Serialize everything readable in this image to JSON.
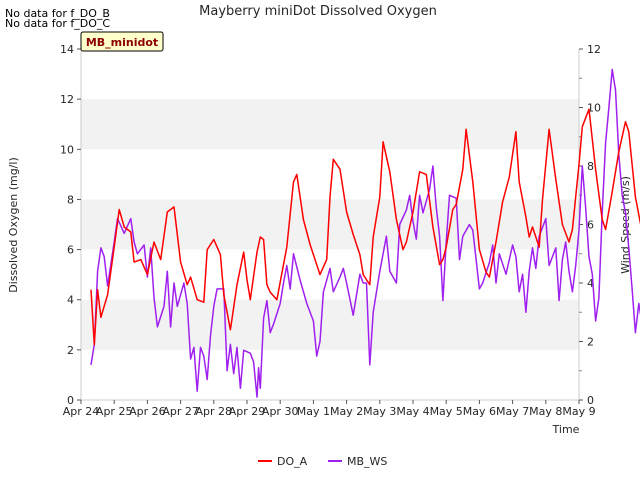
{
  "notes": [
    "No data for f_DO_B",
    "No data for f_DO_C"
  ],
  "badge": "MB_minidot",
  "colors": {
    "do_a": "#ff0000",
    "mb_ws": "#a020f0",
    "band": "#f2f2f2",
    "badge_bg": "#ffffcc",
    "badge_text": "#8b0000"
  },
  "chart_data": {
    "type": "line",
    "title": "Mayberry miniDot Dissolved Oxygen",
    "xlabel": "Time",
    "ylabel": "Dissolved Oxygen (mg/l)",
    "y2label": "Wind Speed (m/s)",
    "ylim": [
      0,
      14
    ],
    "y2lim": [
      0,
      12
    ],
    "yticks": [
      "0",
      "2",
      "4",
      "6",
      "8",
      "10",
      "12",
      "14"
    ],
    "y2ticks": [
      "0",
      "2",
      "4",
      "6",
      "8",
      "10",
      "12"
    ],
    "xticks": [
      "Apr 24",
      "Apr 25",
      "Apr 26",
      "Apr 27",
      "Apr 28",
      "Apr 29",
      "Apr 30",
      "May 1",
      "May 2",
      "May 3",
      "May 4",
      "May 5",
      "May 6",
      "May 7",
      "May 8",
      "May 9"
    ],
    "grid": "horizontal bands",
    "legend_position": "bottom-center",
    "series": [
      {
        "name": "DO_A",
        "axis": "left",
        "points": [
          [
            0.3,
            4.4
          ],
          [
            0.4,
            2.2
          ],
          [
            0.5,
            4.4
          ],
          [
            0.6,
            3.3
          ],
          [
            0.8,
            4.2
          ],
          [
            1.0,
            6.1
          ],
          [
            1.15,
            7.6
          ],
          [
            1.3,
            6.9
          ],
          [
            1.5,
            6.7
          ],
          [
            1.6,
            5.5
          ],
          [
            1.8,
            5.6
          ],
          [
            2.0,
            5.0
          ],
          [
            2.2,
            6.3
          ],
          [
            2.4,
            5.6
          ],
          [
            2.6,
            7.5
          ],
          [
            2.8,
            7.7
          ],
          [
            3.0,
            5.5
          ],
          [
            3.2,
            4.6
          ],
          [
            3.3,
            4.9
          ],
          [
            3.5,
            4.0
          ],
          [
            3.7,
            3.9
          ],
          [
            3.8,
            6.0
          ],
          [
            4.0,
            6.4
          ],
          [
            4.2,
            5.8
          ],
          [
            4.3,
            4.2
          ],
          [
            4.4,
            3.5
          ],
          [
            4.5,
            2.8
          ],
          [
            4.7,
            4.6
          ],
          [
            4.9,
            5.9
          ],
          [
            5.0,
            4.8
          ],
          [
            5.1,
            4.0
          ],
          [
            5.3,
            5.9
          ],
          [
            5.4,
            6.5
          ],
          [
            5.5,
            6.4
          ],
          [
            5.6,
            4.6
          ],
          [
            5.7,
            4.3
          ],
          [
            5.9,
            4.0
          ],
          [
            6.0,
            4.7
          ],
          [
            6.2,
            6.1
          ],
          [
            6.4,
            8.7
          ],
          [
            6.5,
            9.0
          ],
          [
            6.7,
            7.2
          ],
          [
            6.9,
            6.2
          ],
          [
            7.0,
            5.8
          ],
          [
            7.2,
            5.0
          ],
          [
            7.4,
            5.6
          ],
          [
            7.5,
            8.1
          ],
          [
            7.6,
            9.6
          ],
          [
            7.8,
            9.2
          ],
          [
            8.0,
            7.5
          ],
          [
            8.2,
            6.6
          ],
          [
            8.4,
            5.8
          ],
          [
            8.5,
            5.0
          ],
          [
            8.7,
            4.6
          ],
          [
            8.8,
            6.5
          ],
          [
            9.0,
            8.1
          ],
          [
            9.1,
            10.3
          ],
          [
            9.3,
            9.1
          ],
          [
            9.5,
            7.2
          ],
          [
            9.7,
            6.0
          ],
          [
            9.8,
            6.3
          ],
          [
            10.0,
            7.5
          ],
          [
            10.2,
            9.1
          ],
          [
            10.4,
            9.0
          ],
          [
            10.6,
            6.9
          ],
          [
            10.8,
            5.4
          ],
          [
            10.9,
            5.6
          ],
          [
            11.0,
            6.1
          ],
          [
            11.2,
            7.6
          ],
          [
            11.3,
            7.8
          ],
          [
            11.5,
            9.2
          ],
          [
            11.6,
            10.8
          ],
          [
            11.8,
            8.7
          ],
          [
            12.0,
            6.0
          ],
          [
            12.2,
            5.1
          ],
          [
            12.3,
            4.9
          ],
          [
            12.5,
            6.3
          ],
          [
            12.7,
            7.9
          ],
          [
            12.9,
            8.9
          ],
          [
            13.1,
            10.7
          ],
          [
            13.2,
            8.7
          ],
          [
            13.4,
            7.3
          ],
          [
            13.5,
            6.5
          ],
          [
            13.6,
            6.9
          ],
          [
            13.8,
            6.1
          ],
          [
            13.9,
            8.0
          ],
          [
            14.1,
            10.8
          ],
          [
            14.3,
            8.8
          ],
          [
            14.5,
            7.0
          ],
          [
            14.7,
            6.3
          ],
          [
            14.8,
            6.8
          ],
          [
            15.0,
            9.4
          ],
          [
            15.1,
            10.9
          ],
          [
            15.3,
            11.6
          ],
          [
            15.5,
            9.2
          ],
          [
            15.7,
            7.2
          ],
          [
            15.8,
            6.8
          ],
          [
            16.0,
            8.3
          ],
          [
            16.2,
            9.9
          ],
          [
            16.4,
            11.1
          ],
          [
            16.5,
            10.7
          ],
          [
            16.7,
            8.1
          ],
          [
            16.9,
            6.7
          ],
          [
            17.1,
            6.3
          ],
          [
            17.3,
            6.4
          ],
          [
            17.5,
            9.3
          ],
          [
            17.6,
            11.5
          ],
          [
            17.7,
            12.1
          ],
          [
            17.9,
            11.1
          ],
          [
            18.0,
            8.8
          ],
          [
            18.2,
            7.2
          ],
          [
            18.3,
            6.6
          ],
          [
            18.5,
            6.0
          ],
          [
            18.6,
            8.0
          ],
          [
            18.8,
            10.3
          ],
          [
            19.0,
            11.0
          ],
          [
            19.1,
            8.5
          ],
          [
            19.3,
            7.0
          ],
          [
            19.4,
            7.6
          ],
          [
            19.5,
            8.0
          ],
          [
            19.6,
            7.5
          ]
        ]
      },
      {
        "name": "MB_WS",
        "axis": "right",
        "points": [
          [
            0.3,
            1.2
          ],
          [
            0.4,
            1.9
          ],
          [
            0.5,
            4.4
          ],
          [
            0.6,
            5.2
          ],
          [
            0.7,
            4.9
          ],
          [
            0.8,
            3.9
          ],
          [
            1.0,
            5.4
          ],
          [
            1.1,
            6.2
          ],
          [
            1.3,
            5.7
          ],
          [
            1.5,
            6.2
          ],
          [
            1.6,
            5.4
          ],
          [
            1.7,
            5.0
          ],
          [
            1.9,
            5.3
          ],
          [
            2.0,
            4.2
          ],
          [
            2.1,
            5.2
          ],
          [
            2.2,
            3.5
          ],
          [
            2.3,
            2.5
          ],
          [
            2.5,
            3.2
          ],
          [
            2.6,
            4.4
          ],
          [
            2.7,
            2.5
          ],
          [
            2.8,
            4.0
          ],
          [
            2.9,
            3.2
          ],
          [
            3.1,
            4.0
          ],
          [
            3.2,
            3.3
          ],
          [
            3.3,
            1.4
          ],
          [
            3.4,
            1.8
          ],
          [
            3.5,
            0.3
          ],
          [
            3.6,
            1.8
          ],
          [
            3.7,
            1.5
          ],
          [
            3.8,
            0.7
          ],
          [
            3.9,
            2.2
          ],
          [
            4.0,
            3.2
          ],
          [
            4.1,
            3.8
          ],
          [
            4.3,
            3.8
          ],
          [
            4.4,
            1.0
          ],
          [
            4.5,
            1.9
          ],
          [
            4.6,
            0.9
          ],
          [
            4.7,
            1.8
          ],
          [
            4.8,
            0.4
          ],
          [
            4.9,
            1.7
          ],
          [
            5.1,
            1.6
          ],
          [
            5.2,
            1.3
          ],
          [
            5.3,
            0.1
          ],
          [
            5.35,
            1.1
          ],
          [
            5.4,
            0.4
          ],
          [
            5.5,
            2.8
          ],
          [
            5.6,
            3.4
          ],
          [
            5.7,
            2.3
          ],
          [
            5.8,
            2.6
          ],
          [
            6.0,
            3.3
          ],
          [
            6.1,
            4.0
          ],
          [
            6.2,
            4.6
          ],
          [
            6.3,
            3.8
          ],
          [
            6.4,
            5.0
          ],
          [
            6.6,
            4.1
          ],
          [
            6.8,
            3.3
          ],
          [
            7.0,
            2.7
          ],
          [
            7.1,
            1.5
          ],
          [
            7.2,
            2.0
          ],
          [
            7.3,
            3.7
          ],
          [
            7.5,
            4.5
          ],
          [
            7.6,
            3.7
          ],
          [
            7.8,
            4.2
          ],
          [
            7.9,
            4.5
          ],
          [
            8.0,
            4.0
          ],
          [
            8.2,
            2.9
          ],
          [
            8.4,
            4.3
          ],
          [
            8.5,
            4.0
          ],
          [
            8.6,
            4.0
          ],
          [
            8.7,
            1.2
          ],
          [
            8.8,
            3.0
          ],
          [
            9.0,
            4.4
          ],
          [
            9.2,
            5.6
          ],
          [
            9.3,
            4.4
          ],
          [
            9.5,
            4.0
          ],
          [
            9.6,
            6.0
          ],
          [
            9.8,
            6.5
          ],
          [
            9.9,
            7.0
          ],
          [
            10.0,
            6.1
          ],
          [
            10.1,
            5.5
          ],
          [
            10.2,
            7.0
          ],
          [
            10.3,
            6.4
          ],
          [
            10.5,
            7.2
          ],
          [
            10.6,
            8.0
          ],
          [
            10.7,
            6.6
          ],
          [
            10.8,
            5.6
          ],
          [
            10.9,
            3.4
          ],
          [
            11.0,
            5.4
          ],
          [
            11.1,
            7.0
          ],
          [
            11.3,
            6.9
          ],
          [
            11.4,
            4.8
          ],
          [
            11.5,
            5.6
          ],
          [
            11.7,
            6.0
          ],
          [
            11.8,
            5.8
          ],
          [
            12.0,
            3.8
          ],
          [
            12.1,
            4.0
          ],
          [
            12.3,
            4.7
          ],
          [
            12.4,
            5.3
          ],
          [
            12.5,
            4.0
          ],
          [
            12.6,
            5.0
          ],
          [
            12.8,
            4.3
          ],
          [
            13.0,
            5.3
          ],
          [
            13.1,
            4.9
          ],
          [
            13.2,
            3.7
          ],
          [
            13.3,
            4.3
          ],
          [
            13.4,
            3.0
          ],
          [
            13.5,
            4.4
          ],
          [
            13.6,
            5.2
          ],
          [
            13.7,
            4.5
          ],
          [
            13.8,
            5.6
          ],
          [
            14.0,
            6.2
          ],
          [
            14.1,
            4.6
          ],
          [
            14.3,
            5.2
          ],
          [
            14.4,
            3.4
          ],
          [
            14.5,
            4.8
          ],
          [
            14.6,
            5.4
          ],
          [
            14.7,
            4.4
          ],
          [
            14.8,
            3.7
          ],
          [
            14.9,
            4.6
          ],
          [
            15.0,
            5.8
          ],
          [
            15.1,
            8.0
          ],
          [
            15.2,
            6.6
          ],
          [
            15.3,
            4.9
          ],
          [
            15.4,
            4.3
          ],
          [
            15.5,
            2.7
          ],
          [
            15.6,
            3.5
          ],
          [
            15.7,
            6.4
          ],
          [
            15.8,
            8.8
          ],
          [
            15.9,
            10.0
          ],
          [
            16.0,
            11.3
          ],
          [
            16.1,
            10.6
          ],
          [
            16.2,
            8.4
          ],
          [
            16.3,
            7.0
          ],
          [
            16.4,
            6.4
          ],
          [
            16.5,
            5.2
          ],
          [
            16.6,
            3.8
          ],
          [
            16.7,
            2.3
          ],
          [
            16.8,
            3.3
          ],
          [
            16.9,
            2.6
          ],
          [
            17.0,
            3.4
          ],
          [
            17.1,
            3.7
          ],
          [
            17.2,
            4.3
          ],
          [
            17.3,
            3.5
          ],
          [
            17.4,
            3.9
          ],
          [
            17.5,
            4.4
          ],
          [
            17.6,
            6.8
          ],
          [
            17.7,
            6.3
          ],
          [
            17.8,
            5.8
          ],
          [
            17.9,
            7.2
          ],
          [
            18.0,
            8.2
          ],
          [
            18.1,
            7.4
          ],
          [
            18.2,
            6.4
          ],
          [
            18.3,
            7.0
          ],
          [
            18.4,
            5.2
          ],
          [
            18.5,
            6.5
          ],
          [
            18.6,
            6.2
          ],
          [
            18.7,
            5.5
          ],
          [
            18.8,
            6.3
          ],
          [
            18.9,
            7.3
          ],
          [
            19.0,
            6.1
          ],
          [
            19.1,
            4.6
          ],
          [
            19.2,
            5.0
          ],
          [
            19.3,
            6.6
          ],
          [
            19.4,
            5.5
          ],
          [
            19.5,
            5.4
          ]
        ]
      }
    ]
  }
}
